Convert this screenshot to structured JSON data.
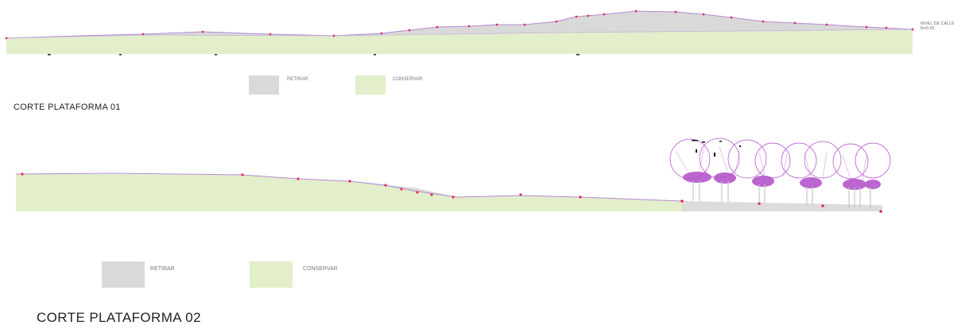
{
  "section1": {
    "title": "CORTE PLATAFORMA 01",
    "note_line1": "NIVEL DE CALLE",
    "note_line2": "N+0.00",
    "legend": [
      {
        "label": "RETIRAR",
        "color": "#d9d9d9"
      },
      {
        "label": "CONSERVAR",
        "color": "#e3eecb"
      }
    ]
  },
  "section2": {
    "title": "CORTE PLATAFORMA 02",
    "legend": [
      {
        "label": "RETIRAR",
        "color": "#d9d9d9"
      },
      {
        "label": "CONSERVAR",
        "color": "#e3eecb"
      }
    ]
  },
  "colors": {
    "retirar": "#d9d9d9",
    "conservar": "#e3eecb",
    "profile_line": "#b48ad6",
    "survey_point": "#e0314a",
    "tree_canopy": "#b04cc8"
  }
}
